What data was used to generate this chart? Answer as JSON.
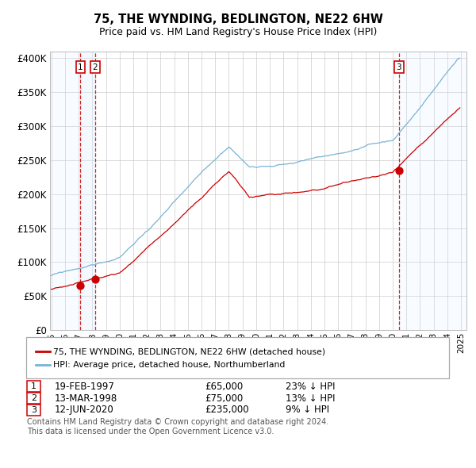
{
  "title": "75, THE WYNDING, BEDLINGTON, NE22 6HW",
  "subtitle": "Price paid vs. HM Land Registry's House Price Index (HPI)",
  "hpi_color": "#7ab3d4",
  "price_color": "#cc0000",
  "grid_color": "#cccccc",
  "bg_color": "#ffffff",
  "sale_years": [
    1997.12,
    1998.21,
    2020.46
  ],
  "sale_prices": [
    65000,
    75000,
    235000
  ],
  "sale_labels": [
    "1",
    "2",
    "3"
  ],
  "legend_price_label": "75, THE WYNDING, BEDLINGTON, NE22 6HW (detached house)",
  "legend_hpi_label": "HPI: Average price, detached house, Northumberland",
  "transaction_rows": [
    {
      "label": "1",
      "date": "19-FEB-1997",
      "price": "£65,000",
      "note": "23% ↓ HPI"
    },
    {
      "label": "2",
      "date": "13-MAR-1998",
      "price": "£75,000",
      "note": "13% ↓ HPI"
    },
    {
      "label": "3",
      "date": "12-JUN-2020",
      "price": "£235,000",
      "note": "9% ↓ HPI"
    }
  ],
  "footnote1": "Contains HM Land Registry data © Crown copyright and database right 2024.",
  "footnote2": "This data is licensed under the Open Government Licence v3.0.",
  "shade_color": "#ddeeff",
  "yticks": [
    0,
    50000,
    100000,
    150000,
    200000,
    250000,
    300000,
    350000,
    400000
  ],
  "ytick_labels": [
    "£0",
    "£50K",
    "£100K",
    "£150K",
    "£200K",
    "£250K",
    "£300K",
    "£350K",
    "£400K"
  ],
  "xlim_start": 1994.9,
  "xlim_end": 2025.4,
  "ylim_top": 410000
}
